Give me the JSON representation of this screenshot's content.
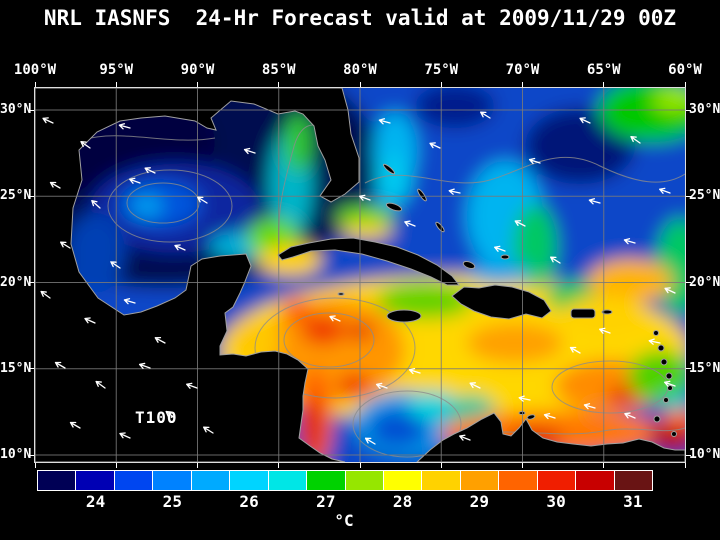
{
  "title": "NRL IASNFS  24-Hr Forecast valid at 2009/11/29 00Z",
  "map": {
    "annotation": "T100",
    "background": "#000000",
    "grid_color": "#7a7a7a"
  },
  "axes": {
    "longitude_labels": [
      "100°W",
      "95°W",
      "90°W",
      "85°W",
      "80°W",
      "75°W",
      "70°W",
      "65°W",
      "60°W"
    ],
    "latitude_labels": [
      "30°N",
      "25°N",
      "20°N",
      "15°N",
      "10°N"
    ]
  },
  "colorbar": {
    "unit": "°C",
    "tick_labels": [
      "24",
      "25",
      "26",
      "27",
      "28",
      "29",
      "30",
      "31"
    ],
    "segment_colors": [
      "#000055",
      "#0000b4",
      "#0046f0",
      "#0082ff",
      "#00aaff",
      "#00d4ff",
      "#00e6e6",
      "#00d200",
      "#96e600",
      "#ffff00",
      "#ffd200",
      "#ffa000",
      "#ff6400",
      "#f01e00",
      "#c80000",
      "#691414"
    ]
  }
}
